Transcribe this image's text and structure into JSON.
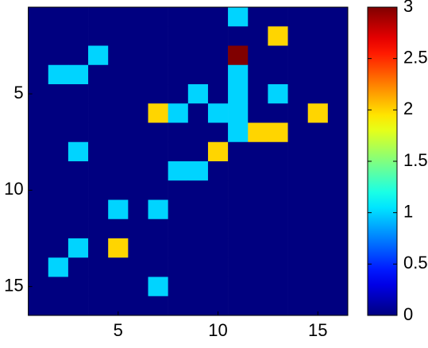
{
  "chart_data": {
    "type": "heatmap",
    "colormap": "jet",
    "z": [
      [
        0,
        0,
        0,
        0,
        0,
        0,
        0,
        0,
        0,
        0,
        1,
        0,
        0,
        0,
        0,
        0
      ],
      [
        0,
        0,
        0,
        0,
        0,
        0,
        0,
        0,
        0,
        0,
        0,
        0,
        2,
        0,
        0,
        0
      ],
      [
        0,
        0,
        0,
        1,
        0,
        0,
        0,
        0,
        0,
        0,
        3,
        0,
        0,
        0,
        0,
        0
      ],
      [
        0,
        1,
        1,
        0,
        0,
        0,
        0,
        0,
        0,
        0,
        1,
        0,
        0,
        0,
        0,
        0
      ],
      [
        0,
        0,
        0,
        0,
        0,
        0,
        0,
        0,
        1,
        0,
        1,
        0,
        1,
        0,
        0,
        0
      ],
      [
        0,
        0,
        0,
        0,
        0,
        0,
        2,
        1,
        0,
        1,
        1,
        0,
        0,
        0,
        2,
        0
      ],
      [
        0,
        0,
        0,
        0,
        0,
        0,
        0,
        0,
        0,
        0,
        1,
        2,
        2,
        0,
        0,
        0
      ],
      [
        0,
        0,
        1,
        0,
        0,
        0,
        0,
        0,
        0,
        2,
        0,
        0,
        0,
        0,
        0,
        0
      ],
      [
        0,
        0,
        0,
        0,
        0,
        0,
        0,
        1,
        1,
        0,
        0,
        0,
        0,
        0,
        0,
        0
      ],
      [
        0,
        0,
        0,
        0,
        0,
        0,
        0,
        0,
        0,
        0,
        0,
        0,
        0,
        0,
        0,
        0
      ],
      [
        0,
        0,
        0,
        0,
        1,
        0,
        1,
        0,
        0,
        0,
        0,
        0,
        0,
        0,
        0,
        0
      ],
      [
        0,
        0,
        0,
        0,
        0,
        0,
        0,
        0,
        0,
        0,
        0,
        0,
        0,
        0,
        0,
        0
      ],
      [
        0,
        0,
        1,
        0,
        2,
        0,
        0,
        0,
        0,
        0,
        0,
        0,
        0,
        0,
        0,
        0
      ],
      [
        0,
        1,
        0,
        0,
        0,
        0,
        0,
        0,
        0,
        0,
        0,
        0,
        0,
        0,
        0,
        0
      ],
      [
        0,
        0,
        0,
        0,
        0,
        0,
        1,
        0,
        0,
        0,
        0,
        0,
        0,
        0,
        0,
        0
      ],
      [
        0,
        0,
        0,
        0,
        0,
        0,
        0,
        0,
        0,
        0,
        0,
        0,
        0,
        0,
        0,
        0
      ]
    ],
    "xlim": [
      0.5,
      16.5
    ],
    "ylim": [
      0.5,
      16.5
    ],
    "y_reversed": true,
    "xticks": [
      5,
      10,
      15
    ],
    "yticks": [
      5,
      10,
      15
    ],
    "clim": [
      0,
      3
    ],
    "cticks": [
      0,
      0.5,
      1,
      1.5,
      2,
      2.5,
      3
    ]
  }
}
